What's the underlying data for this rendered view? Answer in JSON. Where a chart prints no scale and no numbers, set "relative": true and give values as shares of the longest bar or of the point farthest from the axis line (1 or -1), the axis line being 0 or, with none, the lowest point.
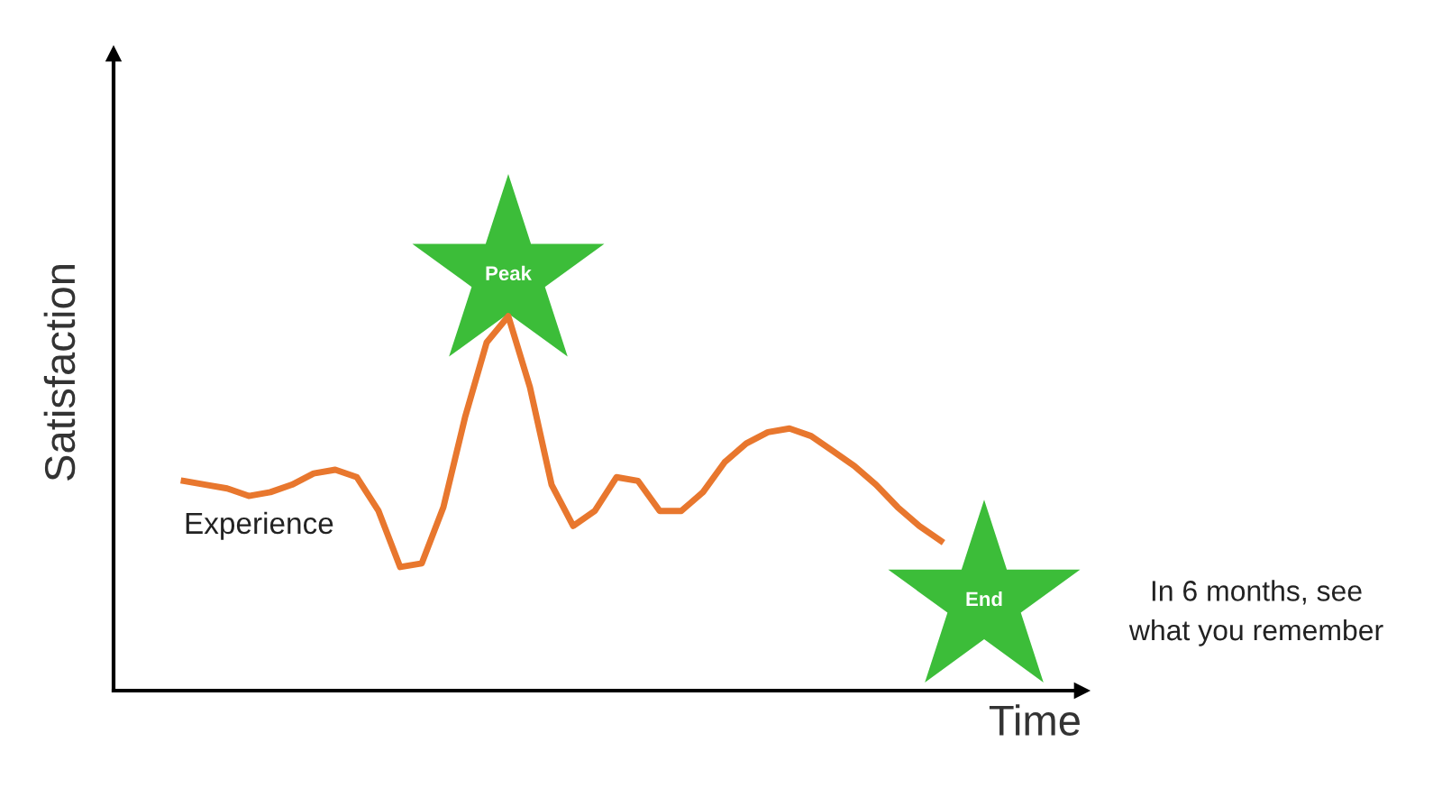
{
  "chart_data": {
    "type": "line",
    "relative": true,
    "xlabel": "Time",
    "ylabel": "Satisfaction",
    "color": "#e8772e",
    "categories": [
      null,
      null,
      null,
      null,
      null,
      null,
      null,
      null,
      null,
      null,
      null,
      null,
      null,
      null,
      null,
      null,
      null,
      null,
      null,
      null,
      null,
      null,
      null,
      null,
      null,
      null,
      null,
      null,
      null,
      null,
      null,
      null,
      null,
      null,
      null,
      null
    ],
    "values": [
      0.56,
      0.55,
      0.54,
      0.52,
      0.53,
      0.55,
      0.58,
      0.59,
      0.57,
      0.48,
      0.33,
      0.34,
      0.49,
      0.73,
      0.93,
      1,
      0.81,
      0.55,
      0.44,
      0.48,
      0.57,
      0.56,
      0.48,
      0.48,
      0.53,
      0.61,
      0.66,
      0.69,
      0.7,
      0.68,
      0.64,
      0.6,
      0.55,
      0.49,
      0.44,
      0.4
    ],
    "annotations": [
      "Peak",
      "End",
      "Experience",
      "In 6 months, see\nwhat you remember"
    ]
  }
}
